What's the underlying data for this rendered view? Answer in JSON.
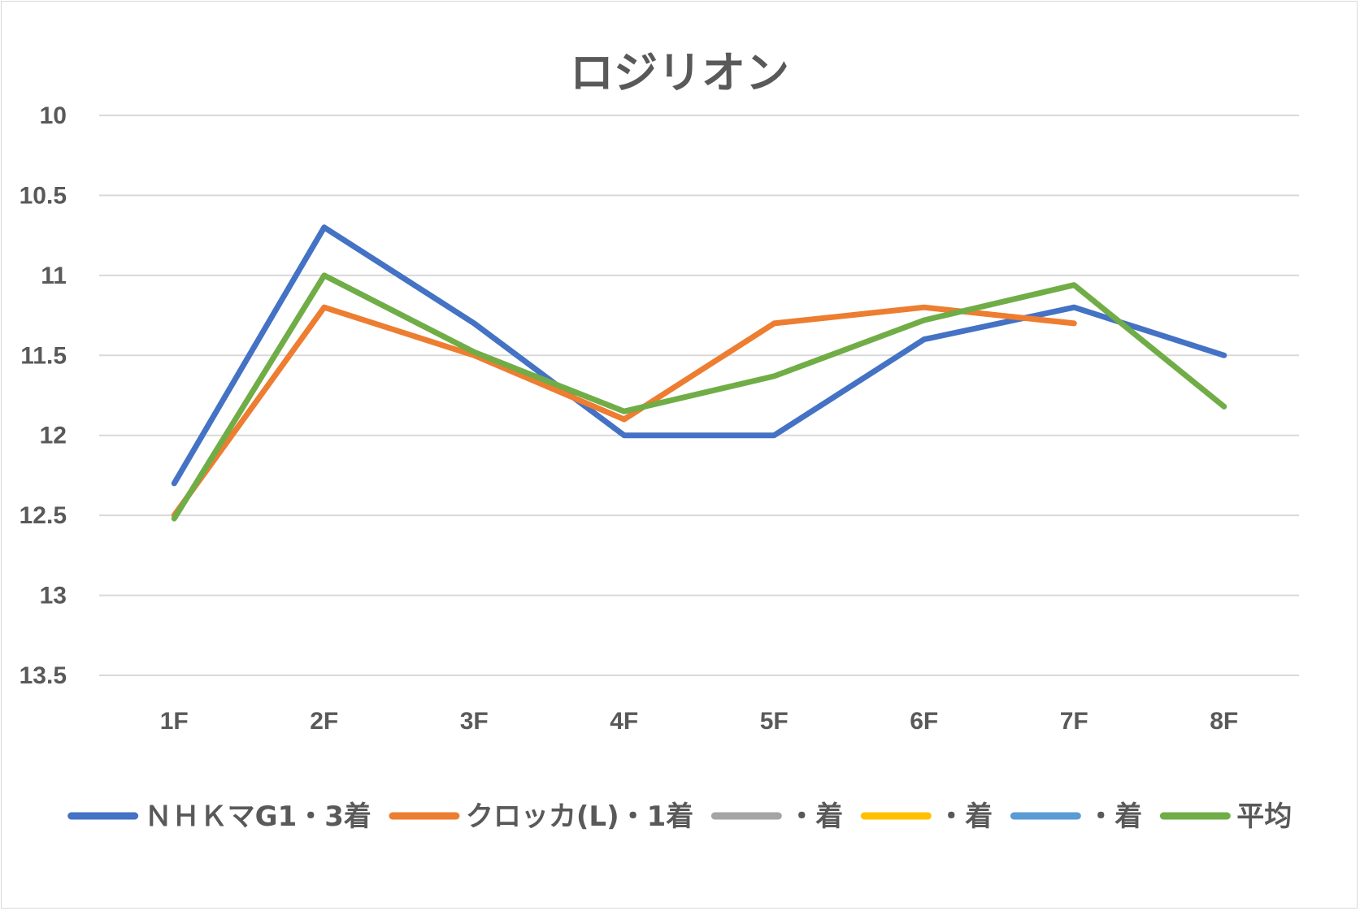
{
  "chart_data": {
    "type": "line",
    "title": "ロジリオン",
    "categories": [
      "1F",
      "2F",
      "3F",
      "4F",
      "5F",
      "6F",
      "7F",
      "8F"
    ],
    "yticks": [
      "10",
      "10.5",
      "11",
      "11.5",
      "12",
      "12.5",
      "13",
      "13.5"
    ],
    "ylim": [
      10,
      13.5
    ],
    "y_inverted": true,
    "grid": true,
    "legend_position": "bottom",
    "series": [
      {
        "name": "ＮＨＫマG1・3着",
        "color": "#4472C4",
        "values": [
          12.3,
          10.7,
          11.3,
          12.0,
          12.0,
          11.4,
          11.2,
          11.5
        ]
      },
      {
        "name": "クロッカ(L)・1着",
        "color": "#ED7D31",
        "values": [
          12.5,
          11.2,
          11.5,
          11.9,
          11.3,
          11.2,
          11.3,
          null
        ]
      },
      {
        "name": "・着",
        "color": "#A5A5A5",
        "values": [
          null,
          null,
          null,
          null,
          null,
          null,
          null,
          null
        ]
      },
      {
        "name": "・着",
        "color": "#FFC000",
        "values": [
          null,
          null,
          null,
          null,
          null,
          null,
          null,
          null
        ]
      },
      {
        "name": "・着",
        "color": "#5B9BD5",
        "values": [
          null,
          null,
          null,
          null,
          null,
          null,
          null,
          null
        ]
      },
      {
        "name": "平均",
        "color": "#70AD47",
        "values": [
          12.52,
          11.0,
          11.48,
          11.85,
          11.63,
          11.28,
          11.06,
          11.82
        ]
      }
    ]
  }
}
